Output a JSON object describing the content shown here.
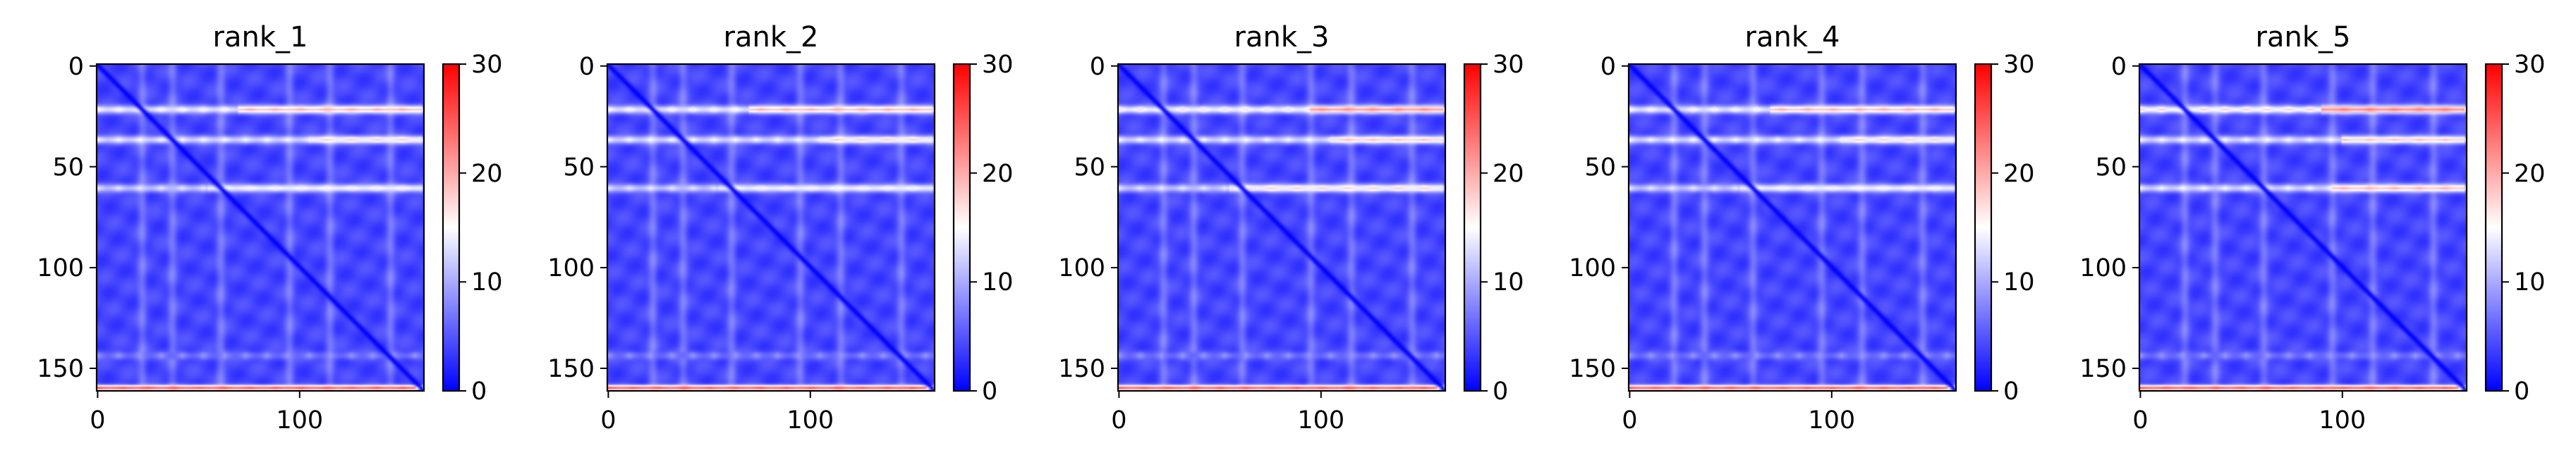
{
  "chart_data": [
    {
      "type": "heatmap",
      "title": "rank_1",
      "x_ticks": [
        "0",
        "100"
      ],
      "y_ticks": [
        "0",
        "50",
        "100",
        "150"
      ],
      "x_tick_values": [
        0,
        100
      ],
      "y_tick_values": [
        0,
        50,
        100,
        150
      ],
      "xlim": [
        0,
        162
      ],
      "ylim": [
        162,
        0
      ],
      "colorbar": {
        "ticks": [
          "0",
          "10",
          "20",
          "30"
        ],
        "tick_values": [
          0,
          10,
          20,
          30
        ],
        "range": [
          0,
          30
        ],
        "colormap": "bwr"
      },
      "matrix_size": 162,
      "diagonal_value": 0,
      "base_value": 4,
      "bright_rows": [
        {
          "row": 22,
          "value": 16,
          "peak_start": 70,
          "peak_end": 160,
          "peak_value": 20
        },
        {
          "row": 37,
          "value": 15,
          "peak_start": 105,
          "peak_end": 160,
          "peak_value": 18
        },
        {
          "row": 61,
          "value": 14,
          "peak_start": 55,
          "peak_end": 160,
          "peak_value": 16
        },
        {
          "row": 144,
          "value": 9,
          "peak_start": 0,
          "peak_end": 0,
          "peak_value": 9
        },
        {
          "row": 160,
          "value": 26,
          "peak_start": 0,
          "peak_end": 162,
          "peak_value": 26
        }
      ],
      "bright_cols": [
        22,
        37,
        61,
        95,
        115,
        145
      ]
    },
    {
      "type": "heatmap",
      "title": "rank_2",
      "x_ticks": [
        "0",
        "100"
      ],
      "y_ticks": [
        "0",
        "50",
        "100",
        "150"
      ],
      "x_tick_values": [
        0,
        100
      ],
      "y_tick_values": [
        0,
        50,
        100,
        150
      ],
      "xlim": [
        0,
        162
      ],
      "ylim": [
        162,
        0
      ],
      "colorbar": {
        "ticks": [
          "0",
          "10",
          "20",
          "30"
        ],
        "tick_values": [
          0,
          10,
          20,
          30
        ],
        "range": [
          0,
          30
        ],
        "colormap": "bwr"
      },
      "matrix_size": 162,
      "diagonal_value": 0,
      "base_value": 4,
      "bright_rows": [
        {
          "row": 22,
          "value": 16,
          "peak_start": 70,
          "peak_end": 160,
          "peak_value": 20
        },
        {
          "row": 37,
          "value": 15,
          "peak_start": 105,
          "peak_end": 160,
          "peak_value": 18
        },
        {
          "row": 61,
          "value": 14,
          "peak_start": 55,
          "peak_end": 160,
          "peak_value": 16
        },
        {
          "row": 144,
          "value": 9,
          "peak_start": 0,
          "peak_end": 0,
          "peak_value": 9
        },
        {
          "row": 160,
          "value": 26,
          "peak_start": 0,
          "peak_end": 162,
          "peak_value": 26
        }
      ],
      "bright_cols": [
        22,
        37,
        61,
        95,
        115,
        145
      ]
    },
    {
      "type": "heatmap",
      "title": "rank_3",
      "x_ticks": [
        "0",
        "100"
      ],
      "y_ticks": [
        "0",
        "50",
        "100",
        "150"
      ],
      "x_tick_values": [
        0,
        100
      ],
      "y_tick_values": [
        0,
        50,
        100,
        150
      ],
      "xlim": [
        0,
        162
      ],
      "ylim": [
        162,
        0
      ],
      "colorbar": {
        "ticks": [
          "0",
          "10",
          "20",
          "30"
        ],
        "tick_values": [
          0,
          10,
          20,
          30
        ],
        "range": [
          0,
          30
        ],
        "colormap": "bwr"
      },
      "matrix_size": 162,
      "diagonal_value": 0,
      "base_value": 4,
      "bright_rows": [
        {
          "row": 22,
          "value": 17,
          "peak_start": 95,
          "peak_end": 160,
          "peak_value": 22
        },
        {
          "row": 37,
          "value": 15,
          "peak_start": 105,
          "peak_end": 160,
          "peak_value": 19
        },
        {
          "row": 61,
          "value": 14,
          "peak_start": 55,
          "peak_end": 160,
          "peak_value": 18
        },
        {
          "row": 144,
          "value": 9,
          "peak_start": 0,
          "peak_end": 0,
          "peak_value": 9
        },
        {
          "row": 160,
          "value": 26,
          "peak_start": 0,
          "peak_end": 162,
          "peak_value": 26
        }
      ],
      "bright_cols": [
        22,
        37,
        61,
        95,
        115,
        145
      ]
    },
    {
      "type": "heatmap",
      "title": "rank_4",
      "x_ticks": [
        "0",
        "100"
      ],
      "y_ticks": [
        "0",
        "50",
        "100",
        "150"
      ],
      "x_tick_values": [
        0,
        100
      ],
      "y_tick_values": [
        0,
        50,
        100,
        150
      ],
      "xlim": [
        0,
        162
      ],
      "ylim": [
        162,
        0
      ],
      "colorbar": {
        "ticks": [
          "0",
          "10",
          "20",
          "30"
        ],
        "tick_values": [
          0,
          10,
          20,
          30
        ],
        "range": [
          0,
          30
        ],
        "colormap": "bwr"
      },
      "matrix_size": 162,
      "diagonal_value": 0,
      "base_value": 4,
      "bright_rows": [
        {
          "row": 22,
          "value": 16,
          "peak_start": 70,
          "peak_end": 160,
          "peak_value": 20
        },
        {
          "row": 37,
          "value": 15,
          "peak_start": 105,
          "peak_end": 160,
          "peak_value": 18
        },
        {
          "row": 61,
          "value": 14,
          "peak_start": 55,
          "peak_end": 160,
          "peak_value": 16
        },
        {
          "row": 144,
          "value": 9,
          "peak_start": 0,
          "peak_end": 0,
          "peak_value": 9
        },
        {
          "row": 160,
          "value": 26,
          "peak_start": 0,
          "peak_end": 162,
          "peak_value": 26
        }
      ],
      "bright_cols": [
        22,
        37,
        61,
        95,
        115,
        145
      ]
    },
    {
      "type": "heatmap",
      "title": "rank_5",
      "x_ticks": [
        "0",
        "100"
      ],
      "y_ticks": [
        "0",
        "50",
        "100",
        "150"
      ],
      "x_tick_values": [
        0,
        100
      ],
      "y_tick_values": [
        0,
        50,
        100,
        150
      ],
      "xlim": [
        0,
        162
      ],
      "ylim": [
        162,
        0
      ],
      "colorbar": {
        "ticks": [
          "0",
          "10",
          "20",
          "30"
        ],
        "tick_values": [
          0,
          10,
          20,
          30
        ],
        "range": [
          0,
          30
        ],
        "colormap": "bwr"
      },
      "matrix_size": 162,
      "diagonal_value": 0,
      "base_value": 4,
      "bright_rows": [
        {
          "row": 22,
          "value": 18,
          "peak_start": 90,
          "peak_end": 160,
          "peak_value": 23
        },
        {
          "row": 37,
          "value": 15,
          "peak_start": 100,
          "peak_end": 160,
          "peak_value": 19
        },
        {
          "row": 61,
          "value": 15,
          "peak_start": 95,
          "peak_end": 160,
          "peak_value": 20
        },
        {
          "row": 144,
          "value": 9,
          "peak_start": 0,
          "peak_end": 0,
          "peak_value": 9
        },
        {
          "row": 160,
          "value": 26,
          "peak_start": 0,
          "peak_end": 162,
          "peak_value": 26
        }
      ],
      "bright_cols": [
        22,
        37,
        61,
        95,
        115,
        145
      ]
    }
  ]
}
